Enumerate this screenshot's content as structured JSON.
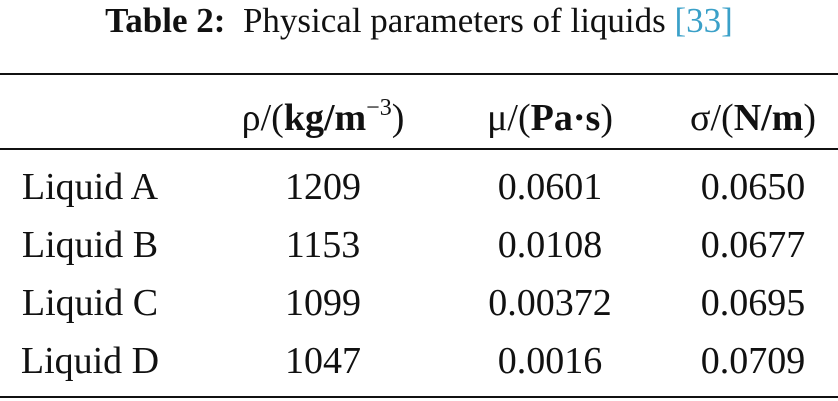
{
  "caption": {
    "label": "Table 2:",
    "text": "Physical parameters of liquids",
    "ref_open": "[",
    "ref": "33",
    "ref_close": "]"
  },
  "table": {
    "headers": [
      {
        "sym": "ρ/(",
        "unit": "kg/m",
        "sup": "−3",
        "close": ")"
      },
      {
        "sym": "μ/(",
        "unit": "Pa·s",
        "sup": "",
        "close": ")"
      },
      {
        "sym": "σ/(",
        "unit": "N/m",
        "sup": "",
        "close": ")"
      }
    ],
    "rows": [
      {
        "name": "Liquid A",
        "rho": "1209",
        "mu": "0.0601",
        "sigma": "0.0650"
      },
      {
        "name": "Liquid B",
        "rho": "1153",
        "mu": "0.0108",
        "sigma": "0.0677"
      },
      {
        "name": "Liquid C",
        "rho": "1099",
        "mu": "0.00372",
        "sigma": "0.0695"
      },
      {
        "name": "Liquid D",
        "rho": "1047",
        "mu": "0.0016",
        "sigma": "0.0709"
      }
    ]
  },
  "colors": {
    "text": "#111111",
    "reference_link": "#3aa0c8"
  }
}
